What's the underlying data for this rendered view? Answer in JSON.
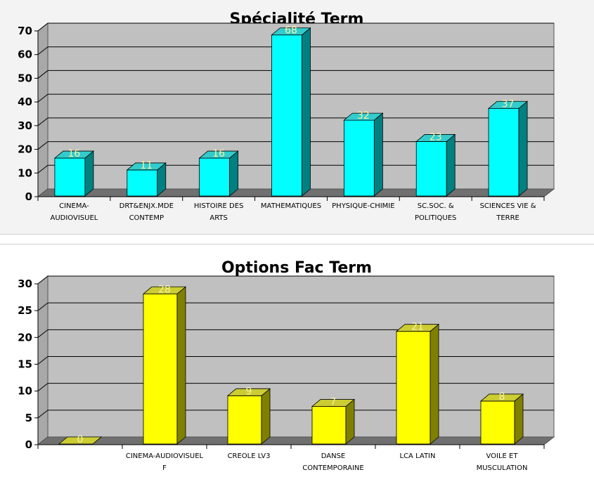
{
  "chart_data": [
    {
      "type": "bar",
      "title": "Spécialité Term",
      "categories": [
        [
          "CINEMA-",
          "AUDIOVISUEL"
        ],
        [
          "DRT&ENJX.MDE",
          "CONTEMP"
        ],
        [
          "HISTOIRE DES",
          "ARTS"
        ],
        [
          "MATHEMATIQUES"
        ],
        [
          "PHYSIQUE-CHIMIE"
        ],
        [
          "SC.SOC. &",
          "POLITIQUES"
        ],
        [
          "SCIENCES VIE &",
          "TERRE"
        ]
      ],
      "values": [
        16,
        11,
        16,
        68,
        32,
        23,
        37
      ],
      "ylim": [
        0,
        70
      ],
      "yticks": [
        0,
        10,
        20,
        30,
        40,
        50,
        60,
        70
      ],
      "grid": true,
      "colors": {
        "front": "#00ffff",
        "side": "#008080",
        "top": "#33cccc"
      }
    },
    {
      "type": "bar",
      "title": "Options Fac Term",
      "categories": [
        [
          ""
        ],
        [
          "CINEMA-AUDIOVISUEL",
          "F"
        ],
        [
          "CREOLE LV3"
        ],
        [
          "DANSE",
          "CONTEMPORAINE"
        ],
        [
          "LCA LATIN"
        ],
        [
          "VOILE ET",
          "MUSCULATION"
        ]
      ],
      "values": [
        0,
        28,
        9,
        7,
        21,
        8
      ],
      "ylim": [
        0,
        30
      ],
      "yticks": [
        0,
        5,
        10,
        15,
        20,
        25,
        30
      ],
      "grid": true,
      "colors": {
        "front": "#ffff00",
        "side": "#808000",
        "top": "#cccc33"
      }
    }
  ]
}
